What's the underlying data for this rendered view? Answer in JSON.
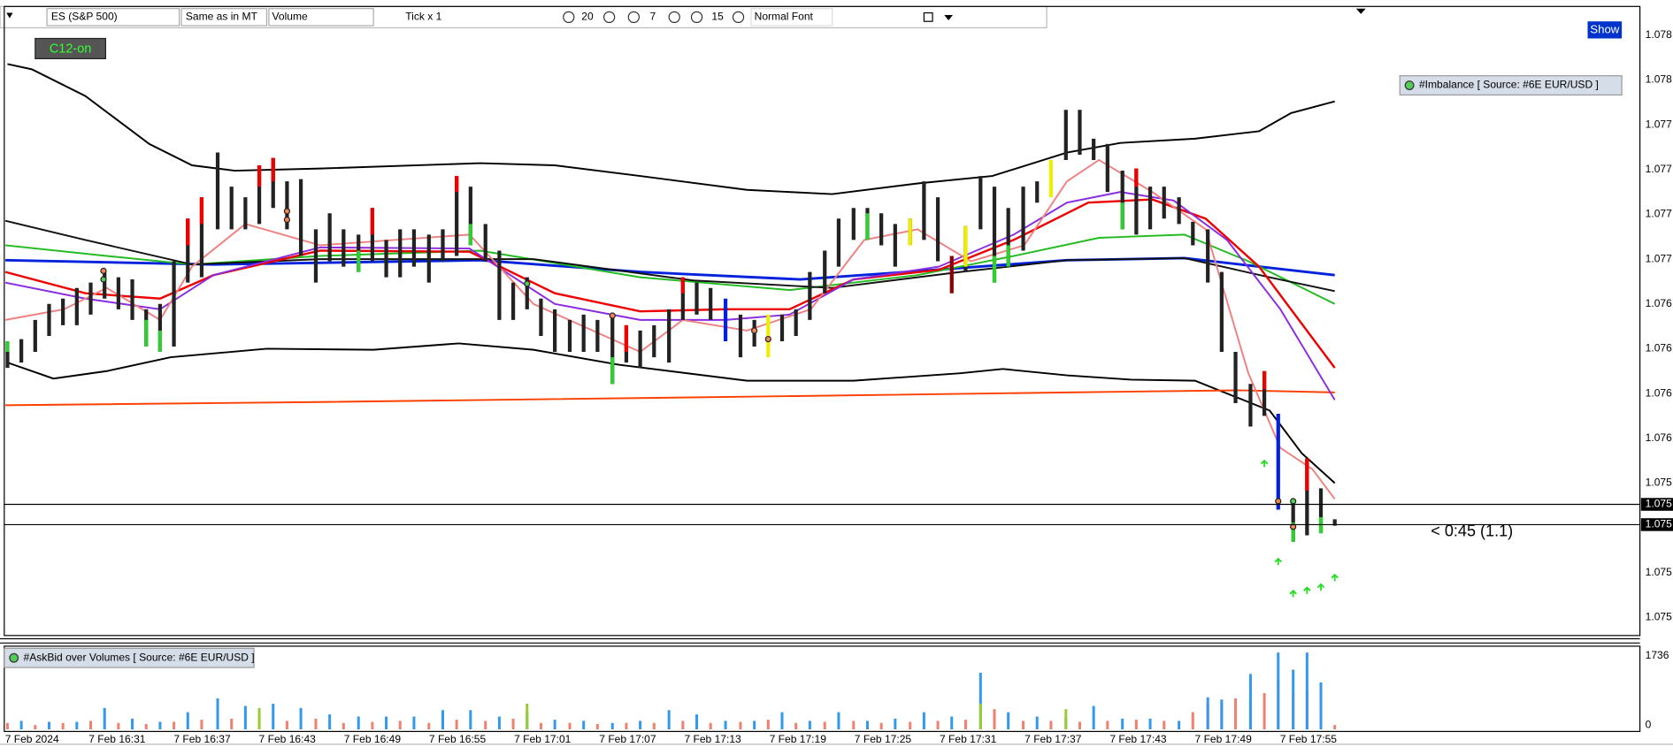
{
  "toolbar": {
    "symbol": "ES (S&P 500)",
    "timeframe": "Same as in MT",
    "indicator": "Volume",
    "tick": "Tick x 1",
    "bar_width": "20",
    "spacing": "7",
    "font_size": "15",
    "font": "Normal Font"
  },
  "show_button": "Show",
  "badge": "C12-on",
  "price_panel": {
    "indicator": "#Imbalance [ Source: #6E EUR/USD ]",
    "price_labels": [
      "1.078",
      "1.078",
      "1.077",
      "1.077",
      "1.077",
      "1.077",
      "1.076",
      "1.076",
      "1.076",
      "1.076",
      "1.075",
      "1.075",
      "1.075"
    ],
    "current_labels": [
      "1.075",
      "1.075"
    ],
    "timer": "< 0:45 (1.1)"
  },
  "volume_panel": {
    "indicator": "#AskBid over Volumes [ Source: #6E EUR/USD ]",
    "axis_labels": [
      "1736",
      "0"
    ]
  },
  "time_labels": [
    "7 Feb 2024",
    "7 Feb 16:31",
    "7 Feb 16:37",
    "7 Feb 16:43",
    "7 Feb 16:49",
    "7 Feb 16:55",
    "7 Feb 17:01",
    "7 Feb 17:07",
    "7 Feb 17:13",
    "7 Feb 17:19",
    "7 Feb 17:25",
    "7 Feb 17:31",
    "7 Feb 17:37",
    "7 Feb 17:43",
    "7 Feb 17:49",
    "7 Feb 17:55"
  ]
}
